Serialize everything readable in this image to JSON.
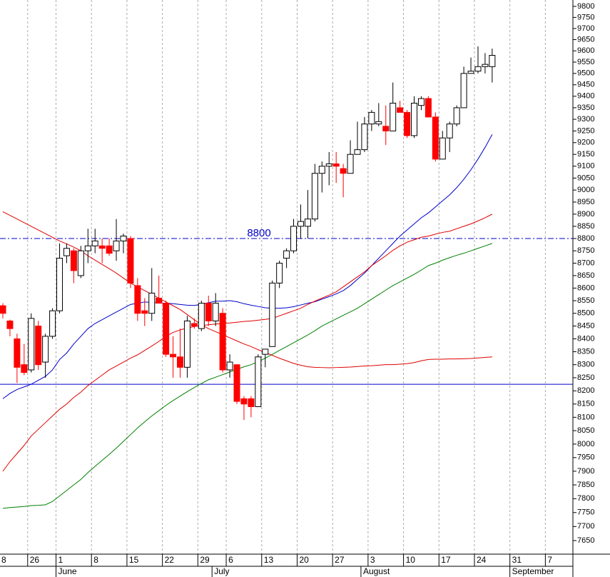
{
  "chart_data": {
    "type": "candlestick",
    "log_scale": true,
    "grid": true,
    "ylim": [
      7602,
      9829
    ],
    "yticks": [
      7650,
      7700,
      7750,
      7800,
      7850,
      7900,
      7950,
      8000,
      8050,
      8100,
      8150,
      8200,
      8250,
      8300,
      8350,
      8400,
      8450,
      8500,
      8550,
      8600,
      8650,
      8700,
      8750,
      8800,
      8850,
      8900,
      8950,
      9000,
      9050,
      9100,
      9150,
      9200,
      9250,
      9300,
      9350,
      9400,
      9450,
      9500,
      9550,
      9600,
      9650,
      9700,
      9750,
      9800
    ],
    "categories": [
      "8",
      null,
      null,
      null,
      "26",
      null,
      null,
      null,
      "1",
      null,
      null,
      null,
      null,
      "8",
      null,
      null,
      null,
      null,
      "15",
      null,
      null,
      null,
      null,
      "22",
      null,
      null,
      null,
      null,
      "29",
      null,
      null,
      null,
      "6",
      null,
      null,
      null,
      null,
      "13",
      null,
      null,
      null,
      null,
      "20",
      null,
      null,
      null,
      null,
      "27",
      null,
      null,
      null,
      null,
      "3",
      null,
      null,
      null,
      null,
      "10",
      null,
      null,
      null,
      null,
      "17",
      null,
      null,
      null,
      null,
      "24",
      null,
      null,
      null,
      null,
      "31",
      null,
      null,
      null,
      null,
      "7",
      null,
      null
    ],
    "months": [
      null,
      null,
      null,
      null,
      null,
      null,
      null,
      null,
      "June",
      null,
      null,
      null,
      null,
      null,
      null,
      null,
      null,
      null,
      null,
      null,
      null,
      null,
      null,
      null,
      null,
      null,
      null,
      null,
      null,
      null,
      "July",
      null,
      null,
      null,
      null,
      null,
      null,
      null,
      null,
      null,
      null,
      null,
      null,
      null,
      null,
      null,
      null,
      null,
      null,
      null,
      null,
      "August",
      null,
      null,
      null,
      null,
      null,
      null,
      null,
      null,
      null,
      null,
      null,
      null,
      null,
      null,
      null,
      null,
      null,
      null,
      null,
      null,
      "September",
      null,
      null,
      null,
      null,
      null,
      null,
      null
    ],
    "up_color": "#ffffff",
    "down_color": "#ff0000",
    "open": [
      8530,
      8470,
      8400,
      8300,
      8280,
      8450,
      8310,
      8410,
      8510,
      8730,
      8750,
      8650,
      8750,
      8770,
      8770,
      8770,
      8750,
      8790,
      8800,
      8610,
      8510,
      8500,
      8560,
      8540,
      8340,
      8330,
      8290,
      8460,
      8440,
      8540,
      8470,
      8500,
      8280,
      8300,
      8170,
      8170,
      8140,
      8340,
      8370,
      8620,
      8720,
      8750,
      8850,
      8850,
      8880,
      9070,
      9100,
      9110,
      9090,
      9070,
      9150,
      9170,
      9280,
      9280,
      9270,
      9250,
      9350,
      9330,
      9230,
      9360,
      9390,
      9310,
      9130,
      9220,
      9280,
      9350,
      9500,
      9510,
      9530,
      9530,
      null,
      null,
      null,
      null,
      null,
      null,
      null,
      null,
      null,
      null
    ],
    "high": [
      8540,
      8475,
      8420,
      8380,
      8500,
      8470,
      8420,
      8520,
      8780,
      8780,
      8760,
      8770,
      8840,
      8840,
      8800,
      8800,
      8880,
      8820,
      8810,
      8640,
      8560,
      8680,
      8650,
      8550,
      8410,
      8440,
      8490,
      8480,
      8550,
      8570,
      8580,
      8520,
      8340,
      8300,
      8180,
      8180,
      8340,
      8360,
      8630,
      8710,
      8760,
      8880,
      8940,
      9000,
      9110,
      9120,
      9160,
      9160,
      9110,
      9210,
      9290,
      9310,
      9340,
      9370,
      9360,
      9460,
      9380,
      9340,
      9400,
      9400,
      9400,
      9330,
      9250,
      9290,
      9360,
      9530,
      9570,
      9620,
      9590,
      9610,
      null,
      null,
      null,
      null,
      null,
      null,
      null,
      null,
      null,
      null
    ],
    "low": [
      8480,
      8410,
      8230,
      8260,
      8270,
      8280,
      8250,
      8400,
      8500,
      8700,
      8620,
      8640,
      8700,
      8740,
      8700,
      8730,
      8710,
      8740,
      8600,
      8470,
      8450,
      8470,
      8540,
      8330,
      8250,
      8250,
      8250,
      8440,
      8430,
      8450,
      8450,
      8270,
      8250,
      8150,
      8090,
      8100,
      8140,
      8290,
      8370,
      8600,
      8680,
      8740,
      8800,
      8800,
      8870,
      8990,
      9020,
      9030,
      8970,
      9070,
      9150,
      9160,
      9250,
      9270,
      9190,
      9250,
      9330,
      9220,
      9220,
      9340,
      9310,
      9120,
      9130,
      9160,
      9270,
      9350,
      9500,
      9500,
      9500,
      9460,
      null,
      null,
      null,
      null,
      null,
      null,
      null,
      null,
      null,
      null
    ],
    "close": [
      8500,
      8440,
      8290,
      8270,
      8480,
      8300,
      8410,
      8510,
      8720,
      8760,
      8670,
      8750,
      8770,
      8790,
      8760,
      8740,
      8790,
      8810,
      8620,
      8500,
      8500,
      8580,
      8540,
      8340,
      8330,
      8290,
      8470,
      8450,
      8540,
      8470,
      8540,
      8280,
      8310,
      8160,
      8150,
      8140,
      8330,
      8360,
      8620,
      8700,
      8750,
      8850,
      8870,
      8880,
      9070,
      9100,
      9110,
      9100,
      9070,
      9150,
      9170,
      9280,
      9330,
      9290,
      9250,
      9370,
      9330,
      9230,
      9370,
      9390,
      9310,
      9130,
      9220,
      9280,
      9350,
      9500,
      9510,
      9530,
      9540,
      9580,
      null,
      null,
      null,
      null,
      null,
      null,
      null,
      null,
      null,
      null
    ],
    "lines": [
      {
        "color": "#0000cc",
        "values": [
          8170,
          8190,
          8205,
          8215,
          8225,
          8240,
          8255,
          8280,
          8320,
          8345,
          8380,
          8410,
          8440,
          8460,
          8475,
          8490,
          8505,
          8520,
          8535,
          8540,
          8545,
          8543,
          8541,
          8540,
          8538,
          8535,
          8532,
          8531,
          8536,
          8542,
          8548,
          8548,
          8550,
          8546,
          8538,
          8532,
          8527,
          8522,
          8520,
          8520,
          8522,
          8526,
          8533,
          8540,
          8546,
          8556,
          8566,
          8577,
          8590,
          8610,
          8635,
          8660,
          8690,
          8720,
          8750,
          8780,
          8810,
          8835,
          8860,
          8885,
          8905,
          8930,
          8955,
          8980,
          9010,
          9045,
          9085,
          9130,
          9180,
          9235,
          null,
          null,
          null,
          null,
          null,
          null,
          null,
          null,
          null,
          null
        ]
      },
      {
        "color": "#e00000",
        "values": [
          7900,
          7935,
          7965,
          7995,
          8030,
          8055,
          8080,
          8105,
          8130,
          8150,
          8175,
          8195,
          8220,
          8240,
          8260,
          8280,
          8295,
          8310,
          8325,
          8338,
          8355,
          8372,
          8390,
          8410,
          8425,
          8435,
          8442,
          8448,
          8452,
          8455,
          8458,
          8460,
          8462,
          8465,
          8468,
          8470,
          8473,
          8476,
          8480,
          8490,
          8500,
          8510,
          8520,
          8535,
          8548,
          8560,
          8572,
          8585,
          8605,
          8625,
          8645,
          8665,
          8690,
          8710,
          8730,
          8752,
          8770,
          8785,
          8795,
          8805,
          8810,
          8818,
          8825,
          8830,
          8840,
          8850,
          8860,
          8872,
          8885,
          8900,
          null,
          null,
          null,
          null,
          null,
          null,
          null,
          null,
          null,
          null
        ]
      },
      {
        "color": "#008000",
        "values": [
          7765,
          7768,
          7770,
          7772,
          7775,
          7776,
          7778,
          7790,
          7810,
          7830,
          7850,
          7870,
          7895,
          7918,
          7940,
          7962,
          7985,
          8010,
          8035,
          8060,
          8083,
          8105,
          8125,
          8145,
          8163,
          8180,
          8197,
          8213,
          8228,
          8242,
          8252,
          8262,
          8272,
          8282,
          8292,
          8300,
          8312,
          8325,
          8340,
          8355,
          8370,
          8385,
          8400,
          8415,
          8432,
          8450,
          8464,
          8478,
          8492,
          8506,
          8520,
          8538,
          8556,
          8574,
          8592,
          8610,
          8625,
          8640,
          8655,
          8672,
          8690,
          8700,
          8712,
          8722,
          8732,
          8740,
          8750,
          8760,
          8770,
          8780,
          null,
          null,
          null,
          null,
          null,
          null,
          null,
          null,
          null,
          null
        ]
      },
      {
        "color": "#e00000",
        "values": [
          8910,
          8895,
          8880,
          8865,
          8850,
          8835,
          8820,
          8805,
          8790,
          8778,
          8765,
          8750,
          8730,
          8712,
          8695,
          8678,
          8660,
          8640,
          8620,
          8605,
          8590,
          8575,
          8560,
          8545,
          8530,
          8515,
          8495,
          8475,
          8455,
          8440,
          8428,
          8416,
          8404,
          8392,
          8380,
          8370,
          8358,
          8347,
          8336,
          8325,
          8315,
          8305,
          8298,
          8292,
          8290,
          8289,
          8288,
          8289,
          8290,
          8291,
          8293,
          8295,
          8296,
          8298,
          8300,
          8300,
          8302,
          8304,
          8308,
          8315,
          8320,
          8321,
          8321,
          8322,
          8322,
          8323,
          8324,
          8326,
          8328,
          8330,
          null,
          null,
          null,
          null,
          null,
          null,
          null,
          null,
          null,
          null
        ]
      }
    ],
    "hlines": [
      {
        "value": 8800,
        "label": "8800",
        "color": "#0000cc",
        "style": "dashdot"
      },
      {
        "value": 8225,
        "color": "#0000cc",
        "style": "solid"
      }
    ]
  }
}
